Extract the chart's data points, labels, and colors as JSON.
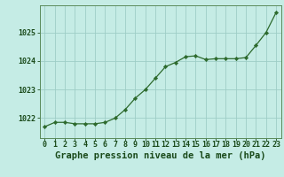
{
  "x": [
    0,
    1,
    2,
    3,
    4,
    5,
    6,
    7,
    8,
    9,
    10,
    11,
    12,
    13,
    14,
    15,
    16,
    17,
    18,
    19,
    20,
    21,
    22,
    23
  ],
  "y": [
    1021.7,
    1021.85,
    1021.85,
    1021.8,
    1021.8,
    1021.8,
    1021.85,
    1022.0,
    1022.3,
    1022.7,
    1023.0,
    1023.4,
    1023.8,
    1023.95,
    1024.15,
    1024.18,
    1024.05,
    1024.08,
    1024.08,
    1024.08,
    1024.12,
    1024.55,
    1025.0,
    1025.7
  ],
  "line_color": "#2d6a2d",
  "marker_color": "#2d6a2d",
  "bg_color": "#c5ece5",
  "grid_color": "#9ecec6",
  "title": "Graphe pression niveau de la mer (hPa)",
  "ylabel_ticks": [
    1022,
    1023,
    1024,
    1025
  ],
  "ylim": [
    1021.3,
    1025.95
  ],
  "xlim": [
    -0.5,
    23.5
  ],
  "title_color": "#1a4a1a",
  "title_fontsize": 7.5,
  "tick_fontsize": 6.0,
  "border_color": "#5a8a5a"
}
